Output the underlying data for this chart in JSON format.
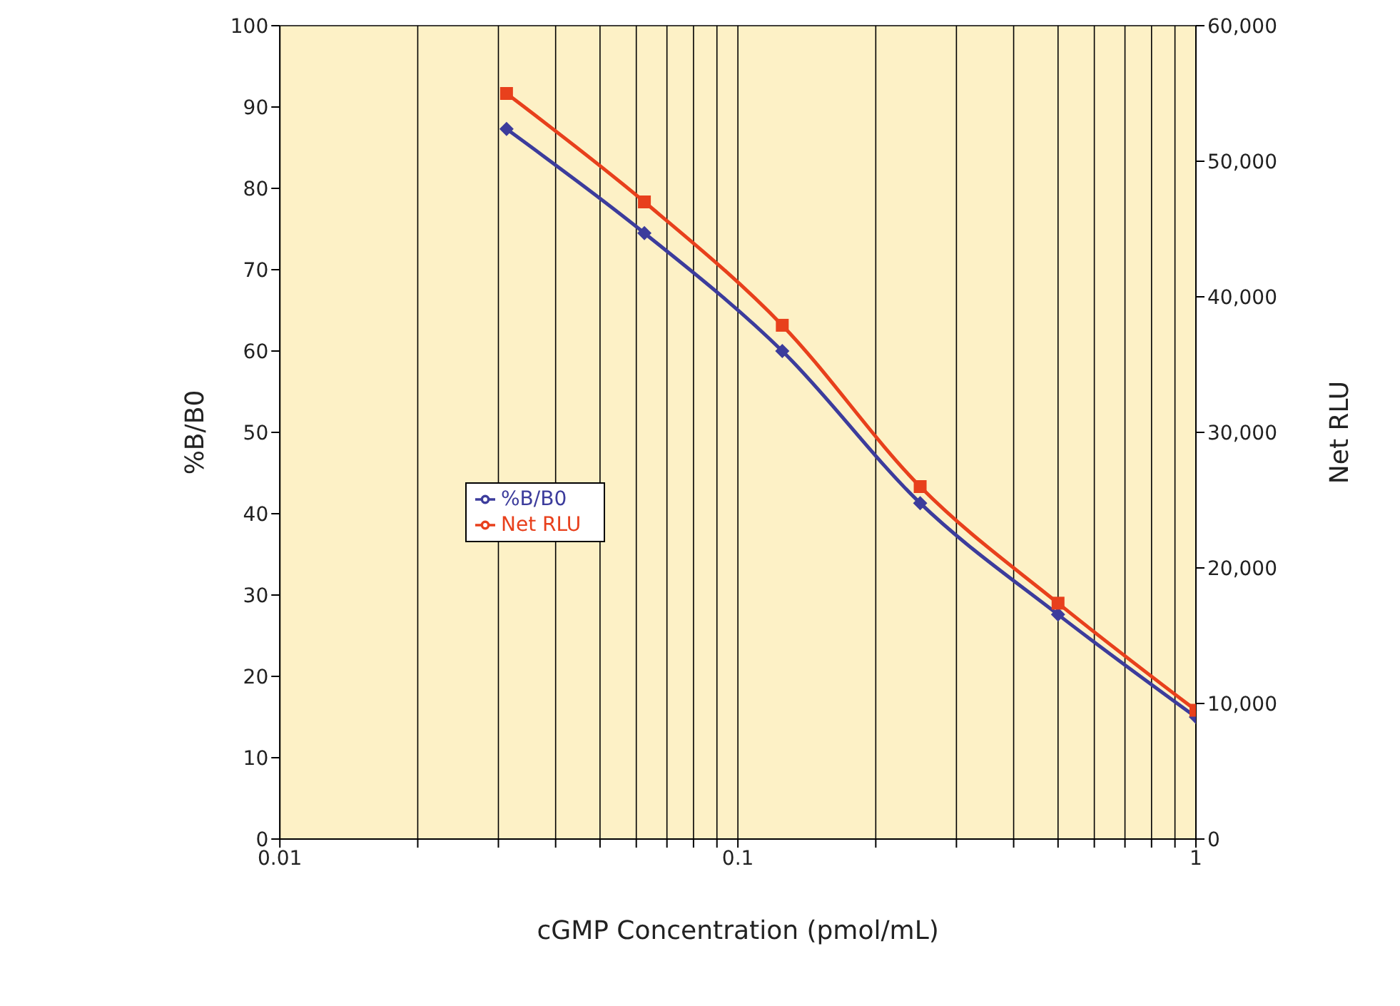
{
  "chart_data": {
    "type": "line",
    "xlabel": "cGMP Concentration (pmol/mL)",
    "ylabel": "%B/B0",
    "y2label": "Net RLU",
    "x": [
      0.03125,
      0.0625,
      0.125,
      0.25,
      0.5,
      1
    ],
    "series": [
      {
        "name": "%B/B0",
        "color": "#3c3c9c",
        "marker": "diamond",
        "values": [
          87.3,
          74.5,
          60,
          41.3,
          27.6,
          15
        ]
      },
      {
        "name": "Net RLU",
        "color": "#e8401c",
        "marker": "square",
        "axis": "y2",
        "values": [
          55000,
          47000,
          37900,
          26000,
          17400,
          9500
        ]
      }
    ],
    "log": "x",
    "xlim": [
      0.01,
      1
    ],
    "xticks": [
      {
        "value": 0.01,
        "label": "0.01"
      },
      {
        "value": 0.02,
        "label": null
      },
      {
        "value": 0.03,
        "label": null
      },
      {
        "value": 0.04,
        "label": null
      },
      {
        "value": 0.05,
        "label": null
      },
      {
        "value": 0.06,
        "label": null
      },
      {
        "value": 0.07,
        "label": null
      },
      {
        "value": 0.08,
        "label": null
      },
      {
        "value": 0.09,
        "label": null
      },
      {
        "value": 0.1,
        "label": "0.1"
      },
      {
        "value": 0.2,
        "label": null
      },
      {
        "value": 0.3,
        "label": null
      },
      {
        "value": 0.4,
        "label": null
      },
      {
        "value": 0.5,
        "label": null
      },
      {
        "value": 0.6,
        "label": null
      },
      {
        "value": 0.7,
        "label": null
      },
      {
        "value": 0.8,
        "label": null
      },
      {
        "value": 0.9,
        "label": null
      },
      1
    ],
    "ylim": [
      0,
      100
    ],
    "yticks": [
      0,
      10,
      20,
      30,
      40,
      50,
      60,
      70,
      80,
      90,
      100
    ],
    "y2lim": [
      0,
      60000
    ],
    "y2ticks": [
      0,
      {
        "value": 10000,
        "label": "10,000"
      },
      {
        "value": 20000,
        "label": "20,000"
      },
      {
        "value": 30000,
        "label": "30,000"
      },
      {
        "value": 40000,
        "label": "40,000"
      },
      {
        "value": 50000,
        "label": "50,000"
      },
      {
        "value": 60000,
        "label": "60,000"
      }
    ],
    "grid": true,
    "legend": "center left",
    "line_style": "solid"
  }
}
